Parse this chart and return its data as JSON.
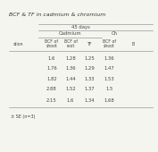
{
  "title": "BCF & TF in cadmium & chromium",
  "days_label": "45 days",
  "cadmium_label": "Cadmium",
  "chromium_label": "Ch",
  "col_headers": [
    "BCF of\nshoot",
    "BCF of\nroot",
    "TF",
    "BCF of\nshoot",
    "B"
  ],
  "treatment_label": "ation",
  "rows": [
    [
      "1.6",
      "1.28",
      "1.25",
      "1.36"
    ],
    [
      "1.76",
      "1.36",
      "1.29",
      "1.47"
    ],
    [
      "1.82",
      "1.44",
      "1.33",
      "1.53"
    ],
    [
      "2.88",
      "1.52",
      "1.37",
      "1.5"
    ],
    [
      "2.15",
      "1.6",
      "1.34",
      "1.68"
    ]
  ],
  "footer": "± SE (n=3)",
  "bg_color": "#f5f5f0",
  "text_color": "#444444",
  "line_color": "#999999",
  "title_color": "#333333",
  "title_fontsize": 4.5,
  "header_fontsize": 3.8,
  "data_fontsize": 3.8,
  "footer_fontsize": 3.5
}
